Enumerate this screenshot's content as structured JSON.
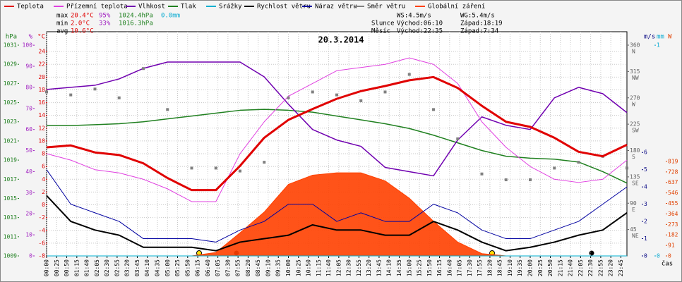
{
  "chart_data": {
    "type": "line",
    "title": "20.3.2014",
    "x_axis_label": "čas",
    "x": [
      0,
      60,
      120,
      180,
      240,
      300,
      360,
      420,
      480,
      540,
      600,
      660,
      720,
      780,
      840,
      900,
      960,
      1020,
      1080,
      1140,
      1200,
      1260,
      1320,
      1380,
      1440
    ],
    "xlim": [
      0,
      1440
    ],
    "xticks": [
      {
        "value": 0,
        "label": "00:00"
      },
      {
        "value": 25,
        "label": "00:25"
      },
      {
        "value": 50,
        "label": "00:50"
      },
      {
        "value": 75,
        "label": "01:15"
      },
      {
        "value": 100,
        "label": "01:40"
      },
      {
        "value": 125,
        "label": "02:05"
      },
      {
        "value": 150,
        "label": "02:30"
      },
      {
        "value": 175,
        "label": "02:55"
      },
      {
        "value": 200,
        "label": "03:20"
      },
      {
        "value": 225,
        "label": "03:45"
      },
      {
        "value": 250,
        "label": "04:10"
      },
      {
        "value": 275,
        "label": "04:35"
      },
      {
        "value": 300,
        "label": "05:00"
      },
      {
        "value": 325,
        "label": "05:25"
      },
      {
        "value": 350,
        "label": "05:50"
      },
      {
        "value": 375,
        "label": "06:15"
      },
      {
        "value": 400,
        "label": "06:40"
      },
      {
        "value": 425,
        "label": "07:05"
      },
      {
        "value": 450,
        "label": "07:30"
      },
      {
        "value": 475,
        "label": "07:55"
      },
      {
        "value": 500,
        "label": "08:20"
      },
      {
        "value": 525,
        "label": "08:45"
      },
      {
        "value": 550,
        "label": "09:10"
      },
      {
        "value": 575,
        "label": "09:35"
      },
      {
        "value": 600,
        "label": "10:00"
      },
      {
        "value": 625,
        "label": "10:25"
      },
      {
        "value": 650,
        "label": "10:50"
      },
      {
        "value": 675,
        "label": "11:15"
      },
      {
        "value": 700,
        "label": "11:40"
      },
      {
        "value": 725,
        "label": "12:05"
      },
      {
        "value": 750,
        "label": "12:30"
      },
      {
        "value": 775,
        "label": "12:55"
      },
      {
        "value": 800,
        "label": "13:20"
      },
      {
        "value": 825,
        "label": "13:45"
      },
      {
        "value": 850,
        "label": "14:10"
      },
      {
        "value": 875,
        "label": "14:35"
      },
      {
        "value": 900,
        "label": "15:00"
      },
      {
        "value": 925,
        "label": "15:25"
      },
      {
        "value": 950,
        "label": "15:50"
      },
      {
        "value": 975,
        "label": "16:15"
      },
      {
        "value": 1000,
        "label": "16:40"
      },
      {
        "value": 1025,
        "label": "17:05"
      },
      {
        "value": 1050,
        "label": "17:30"
      },
      {
        "value": 1075,
        "label": "17:55"
      },
      {
        "value": 1100,
        "label": "18:20"
      },
      {
        "value": 1125,
        "label": "18:45"
      },
      {
        "value": 1150,
        "label": "19:10"
      },
      {
        "value": 1175,
        "label": "19:35"
      },
      {
        "value": 1200,
        "label": "20:00"
      },
      {
        "value": 1225,
        "label": "20:25"
      },
      {
        "value": 1250,
        "label": "20:50"
      },
      {
        "value": 1275,
        "label": "21:15"
      },
      {
        "value": 1300,
        "label": "21:40"
      },
      {
        "value": 1325,
        "label": "22:05"
      },
      {
        "value": 1350,
        "label": "22:30"
      },
      {
        "value": 1375,
        "label": "22:55"
      },
      {
        "value": 1400,
        "label": "23:20"
      },
      {
        "value": 1425,
        "label": "23:45"
      }
    ],
    "grid": true,
    "axes": [
      {
        "id": "press",
        "side": "left",
        "label": "hPa",
        "color": "#208020",
        "lim": [
          1009,
          1032.4
        ],
        "ticks": [
          1009,
          1011,
          1013,
          1015,
          1017,
          1019,
          1021,
          1023,
          1025,
          1027,
          1029,
          1031
        ]
      },
      {
        "id": "hum",
        "side": "left",
        "label": "%",
        "color": "#a020c0",
        "lim": [
          0,
          106.4
        ],
        "ticks": [
          0,
          10,
          20,
          30,
          40,
          50,
          60,
          70,
          80,
          90,
          100
        ]
      },
      {
        "id": "temp",
        "side": "left",
        "label": "°C",
        "color": "#e00000",
        "lim": [
          -8,
          27.1
        ],
        "ticks": [
          -8,
          -6,
          -4,
          -2,
          0,
          2,
          4,
          6,
          8,
          10,
          12,
          14,
          16,
          18,
          20,
          22,
          24
        ]
      },
      {
        "id": "dir",
        "side": "right",
        "color": "#606060",
        "lim": [
          0,
          382.9
        ],
        "ticks": [
          45,
          90,
          135,
          180,
          225,
          270,
          315,
          360
        ],
        "tick_names": [
          "NE",
          "E",
          "SE",
          "S",
          "SW",
          "W",
          "NW",
          "N"
        ]
      },
      {
        "id": "wind",
        "side": "right",
        "label": "m/s",
        "color": "#000080",
        "lim": [
          0,
          13
        ],
        "ticks": [
          0,
          1,
          2,
          3,
          4,
          5,
          6
        ]
      },
      {
        "id": "rain",
        "side": "right",
        "label": "mm",
        "color": "#00a8d0",
        "lim": [
          0,
          1.064
        ],
        "ticks": [
          0,
          1
        ]
      },
      {
        "id": "rad",
        "side": "right",
        "label": "W",
        "color": "#e04000",
        "lim": [
          0,
          1943
        ],
        "ticks": [
          0,
          91,
          182,
          273,
          364,
          455,
          546,
          637,
          728,
          819
        ]
      }
    ],
    "series": [
      {
        "name": "Teplota",
        "color": "#e00000",
        "axis": "temp",
        "kind": "line",
        "width": 3,
        "values": [
          9,
          9.3,
          8.2,
          7.8,
          6.5,
          4.2,
          2.3,
          2.3,
          6.1,
          10.5,
          13.3,
          15,
          16.6,
          17.8,
          18.6,
          19.5,
          20,
          18.3,
          15.5,
          13,
          12.2,
          10.5,
          8.3,
          7.6,
          9.4
        ]
      },
      {
        "name": "Přízemní teplota",
        "color": "#e040e0",
        "axis": "temp",
        "kind": "line",
        "width": 1,
        "values": [
          8,
          7,
          5.5,
          5,
          4,
          2.5,
          0.5,
          0.5,
          8,
          13,
          17,
          19,
          21,
          21.5,
          22,
          23,
          22,
          19,
          13,
          9,
          6,
          4,
          3.5,
          4,
          7
        ]
      },
      {
        "name": "Vlhkost",
        "color": "#7000b0",
        "axis": "hum",
        "kind": "line",
        "width": 1.5,
        "values": [
          79,
          80,
          81,
          84,
          89,
          92,
          92,
          92,
          92,
          85,
          72,
          60,
          55,
          52,
          42,
          40,
          38,
          55,
          66,
          62,
          60,
          75,
          80,
          77,
          68
        ]
      },
      {
        "name": "Tlak",
        "color": "#208020",
        "axis": "press",
        "kind": "line",
        "width": 1.5,
        "values": [
          1022.6,
          1022.6,
          1022.7,
          1022.8,
          1023,
          1023.3,
          1023.6,
          1023.9,
          1024.2,
          1024.3,
          1024.2,
          1024,
          1023.6,
          1023.2,
          1022.8,
          1022.3,
          1021.6,
          1020.8,
          1020,
          1019.4,
          1019.2,
          1019.1,
          1018.8,
          1017.8,
          1016.6
        ]
      },
      {
        "name": "Srážky",
        "color": "#00b0d0",
        "axis": "rain",
        "kind": "line",
        "width": 1,
        "values": [
          0,
          0,
          0,
          0,
          0,
          0,
          0,
          0,
          0,
          0,
          0,
          0,
          0,
          0,
          0,
          0,
          0,
          0,
          0,
          0,
          0,
          0,
          0,
          0,
          0
        ]
      },
      {
        "name": "Rychlost větru",
        "color": "#000000",
        "axis": "wind",
        "kind": "line",
        "width": 2,
        "values": [
          3.5,
          2,
          1.5,
          1.2,
          0.5,
          0.5,
          0.5,
          0.3,
          0.8,
          1,
          1.2,
          1.8,
          1.5,
          1.5,
          1.2,
          1.2,
          2,
          1.5,
          0.8,
          0.3,
          0.5,
          0.8,
          1.2,
          1.5,
          2.5
        ]
      },
      {
        "name": "Náraz větru",
        "color": "#0000a0",
        "axis": "wind",
        "kind": "line",
        "width": 1,
        "values": [
          5,
          3,
          2.5,
          2,
          1,
          1,
          1,
          0.8,
          1.5,
          2,
          3,
          3,
          2,
          2.5,
          2,
          2,
          3,
          2.5,
          1.5,
          1,
          1,
          1.5,
          2,
          3,
          4
        ]
      },
      {
        "name": "Směr větru",
        "color": "#808080",
        "axis": "dir",
        "kind": "scatter",
        "width": 1,
        "values": [
          280,
          275,
          285,
          270,
          320,
          250,
          150,
          150,
          145,
          160,
          270,
          280,
          275,
          265,
          280,
          310,
          250,
          200,
          140,
          130,
          130,
          150,
          160,
          170,
          150
        ]
      },
      {
        "name": "Globální záření",
        "color": "#ff4000",
        "axis": "rad",
        "kind": "area",
        "width": 1,
        "values": [
          0,
          0,
          0,
          0,
          0,
          0,
          0,
          30,
          200,
          380,
          620,
          700,
          720,
          720,
          650,
          500,
          300,
          120,
          20,
          0,
          0,
          0,
          0,
          0,
          0
        ]
      }
    ],
    "info_left": [
      [
        {
          "text": "max",
          "color": "#000000"
        },
        {
          "text": "20.4°C",
          "color": "#e00000"
        },
        {
          "text": "95%",
          "color": "#a020c0"
        },
        {
          "text": "1024.4hPa",
          "color": "#208020"
        },
        {
          "text": "0.0mm",
          "color": "#00a8d0"
        }
      ],
      [
        {
          "text": "min",
          "color": "#000000"
        },
        {
          "text": "2.0°C",
          "color": "#e00000"
        },
        {
          "text": "33%",
          "color": "#a020c0"
        },
        {
          "text": "1016.3hPa",
          "color": "#208020"
        }
      ],
      [
        {
          "text": "avg",
          "color": "#000000"
        },
        {
          "text": "10.6°C",
          "color": "#e00000"
        }
      ]
    ],
    "info_right": [
      [
        "",
        "WS:4.5m/s",
        "WG:5.4m/s"
      ],
      [
        "Slunce",
        "Východ:06:10",
        "Západ:18:19"
      ],
      [
        "Měsíc",
        "Východ:22:35",
        "Západ:7:34"
      ]
    ]
  }
}
